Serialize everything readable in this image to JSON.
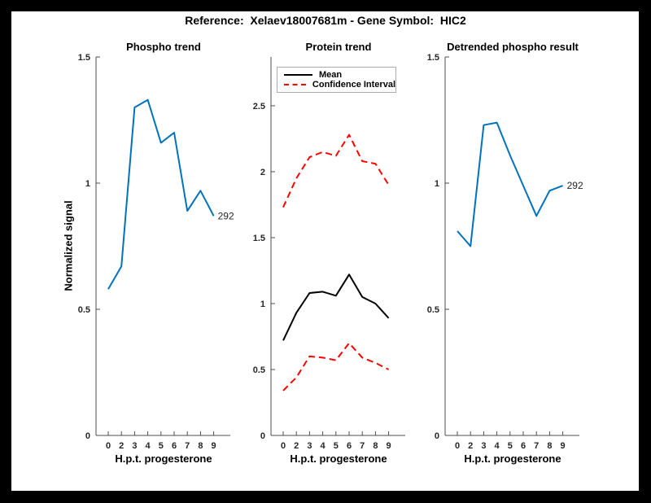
{
  "window": {
    "title": "Reference:  Xelaev18007681m - Gene Symbol:  HIC2"
  },
  "colors": {
    "frame_border": "#000000",
    "figure_background": "#ffffff",
    "axis": "#4d4d4d",
    "blue": "#0072BD",
    "red": "#FF0000",
    "black": "#000000"
  },
  "chart_data": [
    {
      "type": "line",
      "title": "Phospho trend",
      "xlabel": "H.p.t. progesterone",
      "ylabel": "Normalized signal",
      "categories": [
        "0",
        "2",
        "3",
        "4",
        "5",
        "6",
        "7",
        "8",
        "9"
      ],
      "ylim": [
        0,
        1.5
      ],
      "yticks": [
        "0",
        "0.5",
        "1",
        "1.5"
      ],
      "grid": false,
      "legend": null,
      "series": [
        {
          "name": "phospho-signal",
          "color": "#0072BD",
          "dash": "solid",
          "values": [
            0.58,
            0.67,
            1.3,
            1.33,
            1.16,
            1.2,
            0.89,
            0.97,
            0.87
          ],
          "end_label": "292"
        }
      ]
    },
    {
      "type": "line",
      "title": "Protein trend",
      "xlabel": "H.p.t. progesterone",
      "ylabel": "",
      "categories": [
        "0",
        "2",
        "3",
        "4",
        "5",
        "6",
        "7",
        "8",
        "9"
      ],
      "ylim": [
        0,
        2.87
      ],
      "yticks": [
        "0",
        "0.5",
        "1",
        "1.5",
        "2",
        "2.5"
      ],
      "grid": false,
      "legend": {
        "position": "top-left",
        "entries": [
          {
            "label": "Mean",
            "color": "#000000",
            "dash": "solid"
          },
          {
            "label": "Confidence Interval",
            "color": "#FF0000",
            "dash": "dashed"
          }
        ]
      },
      "series": [
        {
          "name": "mean",
          "color": "#000000",
          "dash": "solid",
          "values": [
            0.72,
            0.93,
            1.08,
            1.09,
            1.06,
            1.22,
            1.05,
            1.0,
            0.89
          ]
        },
        {
          "name": "confidence-interval-upper",
          "color": "#FF0000",
          "dash": "dashed",
          "values": [
            1.73,
            1.95,
            2.11,
            2.15,
            2.12,
            2.28,
            2.08,
            2.06,
            1.9
          ]
        },
        {
          "name": "confidence-interval-lower",
          "color": "#FF0000",
          "dash": "dashed",
          "values": [
            0.34,
            0.44,
            0.6,
            0.59,
            0.57,
            0.7,
            0.59,
            0.55,
            0.5
          ]
        }
      ]
    },
    {
      "type": "line",
      "title": "Detrended phospho result",
      "xlabel": "H.p.t. progesterone",
      "ylabel": "",
      "categories": [
        "0",
        "2",
        "3",
        "4",
        "5",
        "6",
        "7",
        "8",
        "9"
      ],
      "ylim": [
        0,
        1.5
      ],
      "yticks": [
        "0",
        "0.5",
        "1",
        "1.5"
      ],
      "grid": false,
      "legend": null,
      "series": [
        {
          "name": "detrended-phospho",
          "color": "#0072BD",
          "dash": "solid",
          "values": [
            0.81,
            0.75,
            1.23,
            1.24,
            1.11,
            0.99,
            0.87,
            0.97,
            0.99
          ],
          "end_label": "292"
        }
      ]
    }
  ]
}
